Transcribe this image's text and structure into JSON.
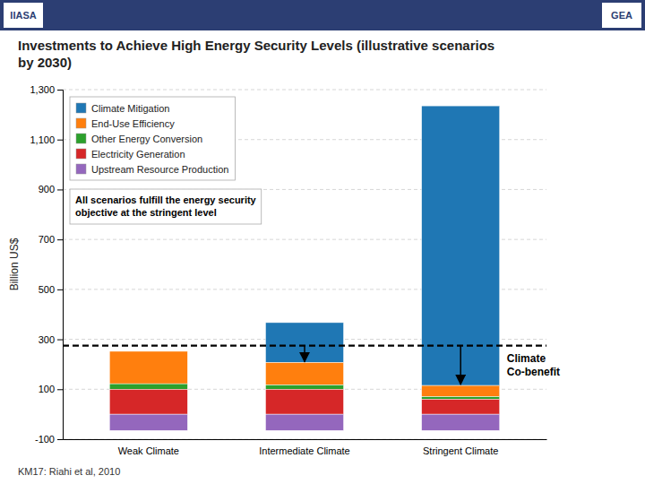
{
  "chart_data": {
    "type": "bar",
    "title": "Investments to Achieve High Energy Security Levels (illustrative scenarios\nby 2030)",
    "ylabel": "Billion US$",
    "categories": [
      "Weak Climate",
      "Intermediate Climate",
      "Stringent Climate"
    ],
    "series": [
      {
        "name": "Climate Mitigation",
        "values": [
          0,
          160,
          1120
        ]
      },
      {
        "name": "End-Use Efficiency",
        "values": [
          130,
          90,
          45
        ]
      },
      {
        "name": "Other Energy Conversion",
        "values": [
          22,
          17,
          10
        ]
      },
      {
        "name": "Electricity Generation",
        "values": [
          100,
          100,
          60
        ]
      },
      {
        "name": "Upstream Resource Production",
        "values": [
          -65,
          -65,
          -65
        ]
      }
    ],
    "stacked": true,
    "ylim": [
      -100,
      1300
    ],
    "yticks": [
      -100,
      100,
      300,
      500,
      700,
      900,
      {
        "value": 1100,
        "label": "1,100"
      },
      {
        "value": 1300,
        "label": "1,300"
      }
    ],
    "grid": true,
    "legend": "top-left",
    "reference_line": 275,
    "arrows": [
      {
        "category": "Intermediate Climate",
        "from": 275,
        "to": 210
      },
      {
        "category": "Stringent Climate",
        "from": 275,
        "to": 120
      }
    ],
    "arrow_label": "Climate\nCo-benefit",
    "annotation": "All scenarios fulfill the energy security\nobjective at the stringent level",
    "footer": "KM17: Riahi et al, 2010",
    "header_labels": [
      "IIASA",
      "GEA"
    ]
  }
}
